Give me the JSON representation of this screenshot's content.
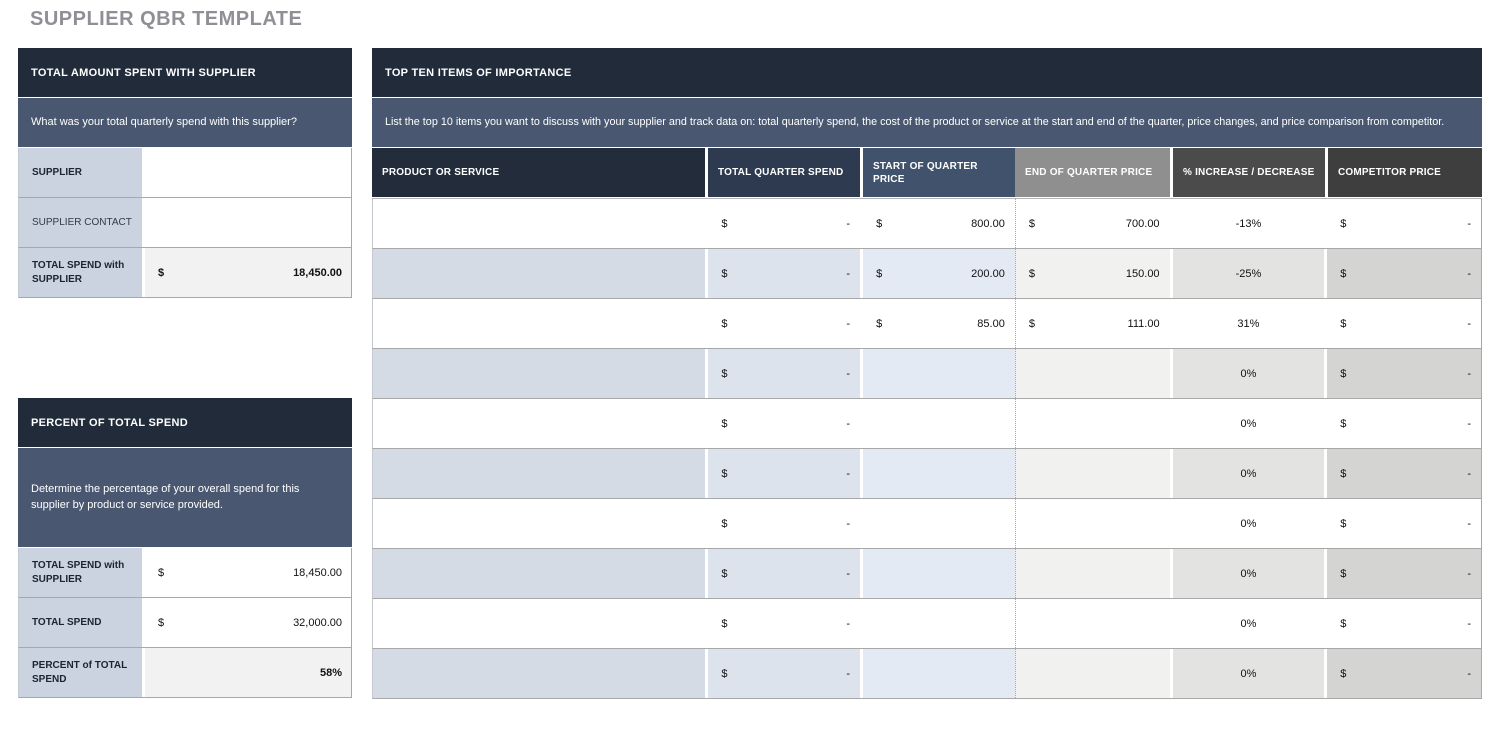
{
  "title": "SUPPLIER QBR TEMPLATE",
  "colors": {
    "title_text": "#8f9096",
    "section_header_bg": "#212b3a",
    "section_description_bg": "#495770",
    "label_cell_bg": "#ccd3e0",
    "highlight_cell_bg": "#f2f2f2",
    "column_header_bgs": {
      "product_or_service": "#222c3b",
      "total_quarter_spend": "#2e3a4f",
      "start_of_quarter_price": "#41526d",
      "end_of_quarter_price": "#8f8f8f",
      "percent_increase_decrease": "#4b4b4b",
      "competitor_price": "#3e3e3e"
    }
  },
  "total_amount_section": {
    "header": "TOTAL AMOUNT SPENT WITH SUPPLIER",
    "description": "What was your total quarterly spend with this supplier?",
    "rows": [
      {
        "label": "SUPPLIER",
        "currency": "",
        "amount": ""
      },
      {
        "label": "SUPPLIER CONTACT",
        "currency": "",
        "amount": ""
      },
      {
        "label": "TOTAL SPEND with SUPPLIER",
        "currency": "$",
        "amount": "18,450.00"
      }
    ]
  },
  "percent_section": {
    "header": "PERCENT OF TOTAL SPEND",
    "description": "Determine the percentage of your overall spend for this supplier by product or service provided.",
    "rows": [
      {
        "label": "TOTAL SPEND with SUPPLIER",
        "currency": "$",
        "amount": "18,450.00"
      },
      {
        "label": "TOTAL SPEND",
        "currency": "$",
        "amount": "32,000.00"
      },
      {
        "label": "PERCENT of TOTAL SPEND",
        "currency": "",
        "amount": "58%"
      }
    ]
  },
  "top_ten_section": {
    "header": "TOP TEN ITEMS OF IMPORTANCE",
    "description": "List the top 10 items you want to discuss with your supplier and track data on: total quarterly spend, the cost of the product or service at the start and end of the quarter, price changes, and price comparison from competitor.",
    "columns": {
      "product": "PRODUCT OR SERVICE",
      "spend": "TOTAL QUARTER SPEND",
      "start": "START OF QUARTER PRICE",
      "end": "END OF QUARTER PRICE",
      "pct": "% INCREASE / DECREASE",
      "comp": "COMPETITOR PRICE"
    },
    "rows": [
      {
        "product": "",
        "spend_currency": "$",
        "spend_amount": "-",
        "start_currency": "$",
        "start_amount": "800.00",
        "end_currency": "$",
        "end_amount": "700.00",
        "pct": "-13%",
        "comp_currency": "$",
        "comp_amount": "-"
      },
      {
        "product": "",
        "spend_currency": "$",
        "spend_amount": "-",
        "start_currency": "$",
        "start_amount": "200.00",
        "end_currency": "$",
        "end_amount": "150.00",
        "pct": "-25%",
        "comp_currency": "$",
        "comp_amount": "-"
      },
      {
        "product": "",
        "spend_currency": "$",
        "spend_amount": "-",
        "start_currency": "$",
        "start_amount": "85.00",
        "end_currency": "$",
        "end_amount": "111.00",
        "pct": "31%",
        "comp_currency": "$",
        "comp_amount": "-"
      },
      {
        "product": "",
        "spend_currency": "$",
        "spend_amount": "-",
        "start_currency": "",
        "start_amount": "",
        "end_currency": "",
        "end_amount": "",
        "pct": "0%",
        "comp_currency": "$",
        "comp_amount": "-"
      },
      {
        "product": "",
        "spend_currency": "$",
        "spend_amount": "-",
        "start_currency": "",
        "start_amount": "",
        "end_currency": "",
        "end_amount": "",
        "pct": "0%",
        "comp_currency": "$",
        "comp_amount": "-"
      },
      {
        "product": "",
        "spend_currency": "$",
        "spend_amount": "-",
        "start_currency": "",
        "start_amount": "",
        "end_currency": "",
        "end_amount": "",
        "pct": "0%",
        "comp_currency": "$",
        "comp_amount": "-"
      },
      {
        "product": "",
        "spend_currency": "$",
        "spend_amount": "-",
        "start_currency": "",
        "start_amount": "",
        "end_currency": "",
        "end_amount": "",
        "pct": "0%",
        "comp_currency": "$",
        "comp_amount": "-"
      },
      {
        "product": "",
        "spend_currency": "$",
        "spend_amount": "-",
        "start_currency": "",
        "start_amount": "",
        "end_currency": "",
        "end_amount": "",
        "pct": "0%",
        "comp_currency": "$",
        "comp_amount": "-"
      },
      {
        "product": "",
        "spend_currency": "$",
        "spend_amount": "-",
        "start_currency": "",
        "start_amount": "",
        "end_currency": "",
        "end_amount": "",
        "pct": "0%",
        "comp_currency": "$",
        "comp_amount": "-"
      },
      {
        "product": "",
        "spend_currency": "$",
        "spend_amount": "-",
        "start_currency": "",
        "start_amount": "",
        "end_currency": "",
        "end_amount": "",
        "pct": "0%",
        "comp_currency": "$",
        "comp_amount": "-"
      }
    ]
  }
}
